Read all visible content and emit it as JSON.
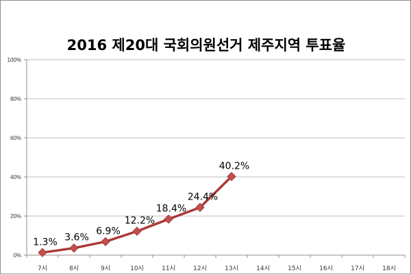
{
  "chart_data": {
    "type": "line",
    "title": "2016 제20대 국회의원선거 제주지역 투표율",
    "categories": [
      "7시",
      "8시",
      "9시",
      "10시",
      "11시",
      "12시",
      "13시",
      "14시",
      "15시",
      "16시",
      "17시",
      "18시"
    ],
    "series": [
      {
        "values": [
          1.3,
          3.6,
          6.9,
          12.2,
          18.4,
          24.4,
          40.2,
          null,
          null,
          null,
          null,
          null
        ],
        "data_labels": [
          "1.3%",
          "3.6%",
          "6.9%",
          "12.2%",
          "18.4%",
          "24.4%",
          "40.2%"
        ],
        "color": "#c0504d",
        "line_color": "#a93a37",
        "marker": "diamond"
      }
    ],
    "y_ticks": [
      "0%",
      "20%",
      "40%",
      "60%",
      "80%",
      "100%"
    ],
    "ylim": [
      0,
      100
    ],
    "xlabel": "",
    "ylabel": "",
    "grid": true,
    "legend": "none"
  },
  "colors": {
    "grid": "#a6a6a6",
    "axis": "#8c8c8c",
    "series": "#c0504d"
  }
}
